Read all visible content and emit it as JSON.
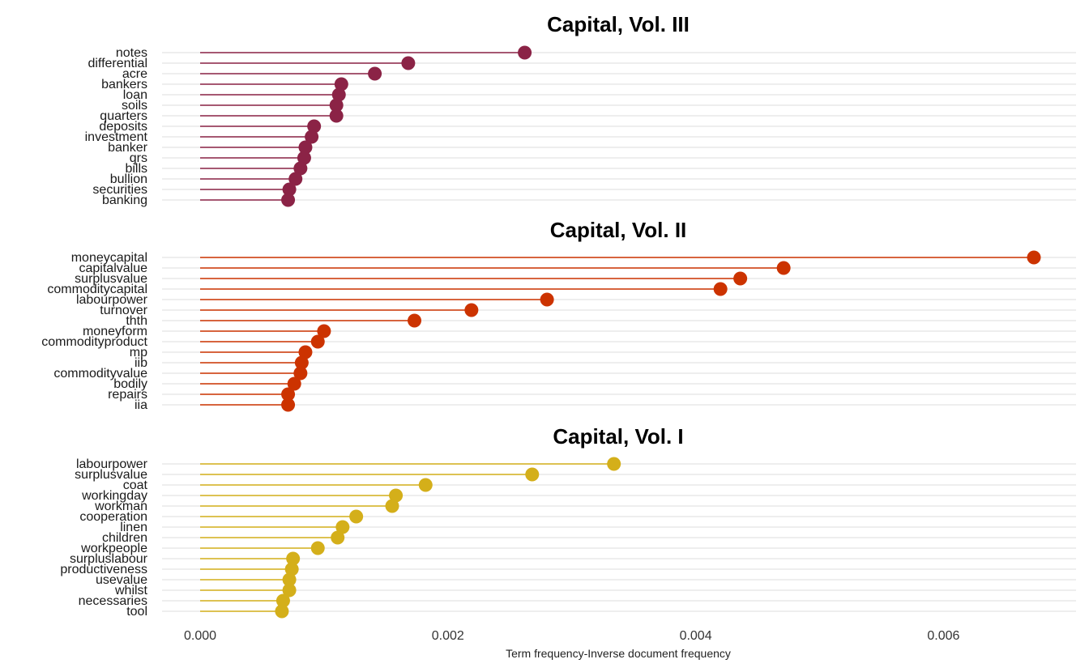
{
  "chart_data": {
    "type": "lollipop",
    "xlabel": "Term frequency-Inverse document frequency",
    "xlim": [
      -0.0001,
      0.00707
    ],
    "x_ticks": [
      "0.000",
      "0.002",
      "0.004",
      "0.006"
    ],
    "x_tick_values": [
      0,
      0.002,
      0.004,
      0.006
    ],
    "grid": true,
    "legend": "none",
    "panels": [
      {
        "title": "Capital, Vol. III",
        "color": "#8B2346",
        "categories": [
          "notes",
          "differential",
          "acre",
          "bankers",
          "loan",
          "soils",
          "quarters",
          "deposits",
          "investment",
          "banker",
          "qrs",
          "bills",
          "bullion",
          "securities",
          "banking"
        ],
        "values": [
          0.00262,
          0.00168,
          0.00141,
          0.00114,
          0.00112,
          0.0011,
          0.0011,
          0.00092,
          0.0009,
          0.00085,
          0.00084,
          0.00081,
          0.00077,
          0.00072,
          0.00071
        ]
      },
      {
        "title": "Capital, Vol. II",
        "color": "#CC3300",
        "categories": [
          "moneycapital",
          "capitalvalue",
          "surplusvalue",
          "commoditycapital",
          "labourpower",
          "turnover",
          "thth",
          "moneyform",
          "commodityproduct",
          "mp",
          "iib",
          "commodityvalue",
          "bodily",
          "repairs",
          "iia"
        ],
        "values": [
          0.00673,
          0.00471,
          0.00436,
          0.0042,
          0.0028,
          0.00219,
          0.00173,
          0.001,
          0.00095,
          0.00085,
          0.00082,
          0.00081,
          0.00076,
          0.00071,
          0.00071
        ]
      },
      {
        "title": "Capital, Vol. I",
        "color": "#D4AF1A",
        "categories": [
          "labourpower",
          "surplusvalue",
          "coat",
          "workingday",
          "workman",
          "cooperation",
          "linen",
          "children",
          "workpeople",
          "surpluslabour",
          "productiveness",
          "usevalue",
          "whilst",
          "necessaries",
          "tool"
        ],
        "values": [
          0.00334,
          0.00268,
          0.00182,
          0.00158,
          0.00155,
          0.00126,
          0.00115,
          0.00111,
          0.00095,
          0.00075,
          0.00074,
          0.00072,
          0.00072,
          0.00067,
          0.00066
        ]
      }
    ]
  }
}
